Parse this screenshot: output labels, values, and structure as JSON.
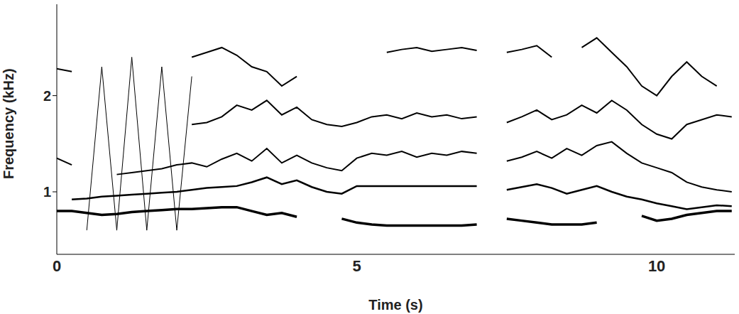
{
  "chart_data": {
    "type": "line",
    "x_label": "Time (s)",
    "y_label": "Frequency (kHz)",
    "x": [
      0,
      0.25,
      0.5,
      0.75,
      1,
      1.25,
      1.5,
      1.75,
      2,
      2.25,
      2.5,
      2.75,
      3,
      3.25,
      3.5,
      3.75,
      4,
      4.25,
      4.5,
      4.75,
      5,
      5.25,
      5.5,
      5.75,
      6,
      6.25,
      6.5,
      6.75,
      7,
      7.25,
      7.5,
      7.75,
      8,
      8.25,
      8.5,
      8.75,
      9,
      9.25,
      9.5,
      9.75,
      10,
      10.25,
      10.5,
      10.75,
      11,
      11.25
    ],
    "xlim": [
      0,
      11.3
    ],
    "xticks": [
      0,
      5,
      10
    ],
    "ylim": [
      0.35,
      2.95
    ],
    "yticks": [
      1,
      2
    ],
    "grid": false,
    "line_style": "solid",
    "series": [
      {
        "color": "#000000",
        "values": [
          0.8,
          0.8,
          0.78,
          0.76,
          0.77,
          0.79,
          0.8,
          0.81,
          0.82,
          0.82,
          0.83,
          0.84,
          0.84,
          0.8,
          0.76,
          0.78,
          0.74,
          null,
          null,
          0.72,
          0.68,
          0.66,
          0.65,
          0.65,
          0.65,
          0.65,
          0.65,
          0.65,
          0.66,
          null,
          0.72,
          0.7,
          0.68,
          0.66,
          0.66,
          0.66,
          0.68,
          null,
          null,
          0.75,
          0.7,
          0.72,
          0.76,
          0.78,
          0.8,
          0.8
        ]
      },
      {
        "color": "#000000",
        "values": [
          null,
          0.92,
          0.93,
          0.95,
          0.96,
          0.97,
          0.98,
          0.99,
          1.0,
          1.02,
          1.04,
          1.05,
          1.06,
          1.1,
          1.15,
          1.08,
          1.12,
          1.05,
          1.0,
          0.98,
          1.06,
          1.06,
          1.06,
          1.06,
          1.06,
          1.06,
          1.06,
          1.06,
          1.06,
          null,
          1.02,
          1.05,
          1.08,
          1.04,
          0.98,
          1.02,
          1.06,
          1.0,
          0.95,
          0.92,
          0.88,
          0.85,
          0.82,
          0.84,
          0.86,
          0.85
        ]
      },
      {
        "color": "#000000",
        "values": [
          1.35,
          1.28,
          null,
          null,
          1.18,
          1.2,
          1.22,
          1.24,
          1.28,
          1.3,
          1.26,
          1.34,
          1.4,
          1.32,
          1.45,
          1.3,
          1.38,
          1.3,
          1.25,
          1.22,
          1.35,
          1.4,
          1.38,
          1.42,
          1.36,
          1.4,
          1.38,
          1.42,
          1.4,
          null,
          1.32,
          1.36,
          1.42,
          1.35,
          1.45,
          1.38,
          1.48,
          1.52,
          1.4,
          1.3,
          1.25,
          1.2,
          1.1,
          1.05,
          1.02,
          1.0
        ]
      },
      {
        "color": "#000000",
        "values": [
          null,
          null,
          null,
          null,
          null,
          null,
          null,
          null,
          null,
          1.7,
          1.72,
          1.78,
          1.9,
          1.85,
          1.95,
          1.8,
          1.88,
          1.75,
          1.7,
          1.68,
          1.72,
          1.78,
          1.8,
          1.76,
          1.82,
          1.78,
          1.8,
          1.76,
          1.78,
          null,
          1.72,
          1.78,
          1.85,
          1.75,
          1.8,
          1.9,
          1.82,
          1.95,
          1.85,
          1.7,
          1.6,
          1.55,
          1.7,
          1.75,
          1.8,
          1.78
        ]
      },
      {
        "color": "#000000",
        "values": [
          2.28,
          2.25,
          null,
          null,
          null,
          null,
          null,
          null,
          null,
          2.4,
          2.45,
          2.5,
          2.42,
          2.3,
          2.25,
          2.1,
          2.2,
          null,
          null,
          null,
          null,
          null,
          2.45,
          2.48,
          2.5,
          2.46,
          2.48,
          2.5,
          2.47,
          null,
          2.45,
          2.48,
          2.52,
          2.4,
          null,
          2.5,
          2.6,
          2.45,
          2.3,
          2.1,
          2.0,
          2.2,
          2.35,
          2.2,
          2.1,
          null
        ]
      },
      {
        "color": "#000000",
        "values": [
          null,
          null,
          0.6,
          2.3,
          0.6,
          2.4,
          0.6,
          2.3,
          0.6,
          2.2,
          null,
          null,
          null,
          null,
          null,
          null,
          null,
          null,
          null,
          null,
          null,
          null,
          null,
          null,
          null,
          null,
          null,
          null,
          null,
          null,
          null,
          null,
          null,
          null,
          null,
          null,
          null,
          null,
          null,
          null,
          null,
          null,
          null,
          null,
          null,
          null
        ]
      }
    ]
  }
}
